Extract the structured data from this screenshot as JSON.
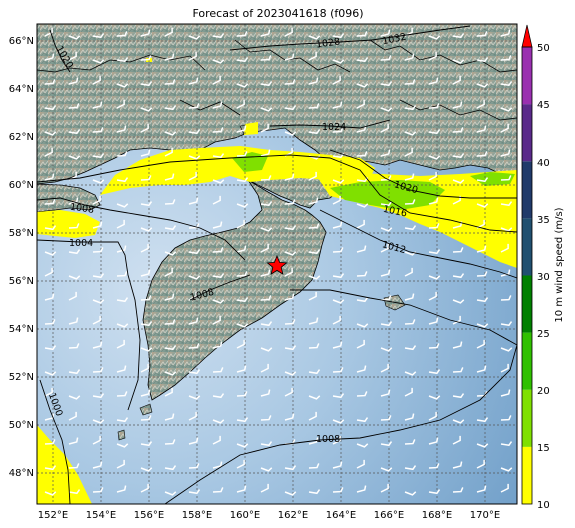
{
  "title": "Forecast of 2023041618 (f096)",
  "map": {
    "lat_labels": [
      "66°N",
      "64°N",
      "62°N",
      "60°N",
      "58°N",
      "56°N",
      "54°N",
      "52°N",
      "50°N",
      "48°N"
    ],
    "lon_labels": [
      "152°E",
      "154°E",
      "156°E",
      "158°E",
      "160°E",
      "162°E",
      "164°E",
      "166°E",
      "168°E",
      "170°E"
    ],
    "gridlines": "dotted",
    "marker": {
      "symbol": "red-star",
      "lon": 161.3,
      "lat": 56.7
    }
  },
  "isobars": [
    {
      "label": "1028"
    },
    {
      "label": "1032"
    },
    {
      "label": "1024"
    },
    {
      "label": "1020"
    },
    {
      "label": "1020"
    },
    {
      "label": "1016"
    },
    {
      "label": "1012"
    },
    {
      "label": "1008"
    },
    {
      "label": "1004"
    },
    {
      "label": "1008"
    },
    {
      "label": "1000"
    },
    {
      "label": "1008"
    }
  ],
  "colorbar": {
    "label": "10 m wind speed (m/s)",
    "ticks": [
      "50",
      "45",
      "40",
      "35",
      "30",
      "25",
      "20",
      "15",
      "10"
    ],
    "bands": [
      {
        "from": 10,
        "to": 15,
        "color": "#ffff00"
      },
      {
        "from": 15,
        "to": 20,
        "color": "#80e000"
      },
      {
        "from": 20,
        "to": 25,
        "color": "#30c000"
      },
      {
        "from": 25,
        "to": 30,
        "color": "#008000"
      },
      {
        "from": 30,
        "to": 35,
        "color": "#205070"
      },
      {
        "from": 35,
        "to": 40,
        "color": "#203a6a"
      },
      {
        "from": 40,
        "to": 45,
        "color": "#5a2a8a"
      },
      {
        "from": 45,
        "to": 50,
        "color": "#9a30b0"
      }
    ],
    "extend_color": "#ff0000"
  }
}
